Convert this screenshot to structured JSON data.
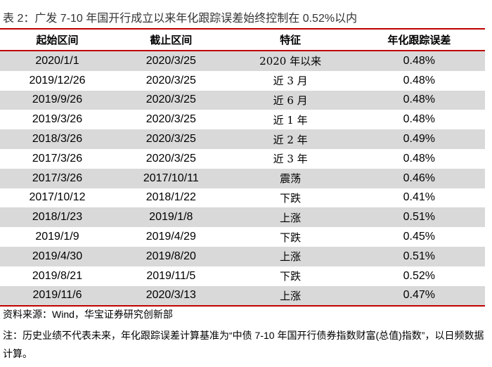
{
  "title": "表 2：广发 7-10 年国开行成立以来年化跟踪误差始终控制在 0.52%以内",
  "table": {
    "header": [
      "起始区间",
      "截止区间",
      "特征",
      "年化跟踪误差"
    ],
    "rows": [
      [
        "2020/1/1",
        "2020/3/25",
        "2020 年以来",
        "0.48%"
      ],
      [
        "2019/12/26",
        "2020/3/25",
        "近 3 月",
        "0.48%"
      ],
      [
        "2019/9/26",
        "2020/3/25",
        "近 6 月",
        "0.48%"
      ],
      [
        "2019/3/26",
        "2020/3/25",
        "近 1 年",
        "0.48%"
      ],
      [
        "2018/3/26",
        "2020/3/25",
        "近 2 年",
        "0.49%"
      ],
      [
        "2017/3/26",
        "2020/3/25",
        "近 3 年",
        "0.48%"
      ],
      [
        "2017/3/26",
        "2017/10/11",
        "震荡",
        "0.46%"
      ],
      [
        "2017/10/12",
        "2018/1/22",
        "下跌",
        "0.41%"
      ],
      [
        "2018/1/23",
        "2019/1/8",
        "上涨",
        "0.51%"
      ],
      [
        "2019/1/9",
        "2019/4/29",
        "下跌",
        "0.45%"
      ],
      [
        "2019/4/30",
        "2019/8/20",
        "上涨",
        "0.51%"
      ],
      [
        "2019/8/21",
        "2019/11/5",
        "下跌",
        "0.52%"
      ],
      [
        "2019/11/6",
        "2020/3/13",
        "上涨",
        "0.47%"
      ]
    ]
  },
  "source": "资料来源：Wind，华宝证券研究创新部",
  "note": "注：历史业绩不代表未来，年化跟踪误差计算基准为“中债 7-10 年国开行债券指数财富(总值)指数”，以日频数据计算。"
}
